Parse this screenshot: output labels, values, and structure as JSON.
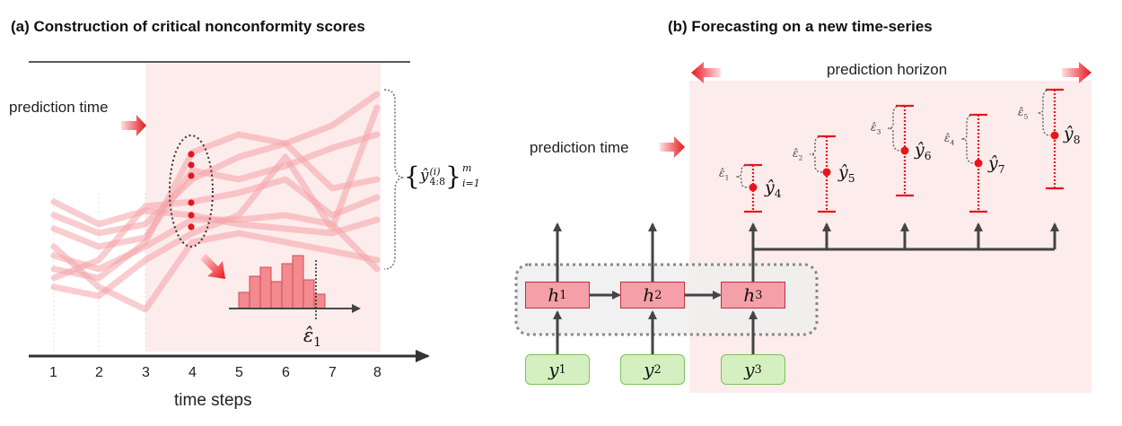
{
  "panel_a": {
    "title": "(a) Construction of critical nonconformity scores",
    "prediction_time_label": "prediction time",
    "x_axis_label": "time steps",
    "ticks": [
      "1",
      "2",
      "3",
      "4",
      "5",
      "6",
      "7",
      "8"
    ],
    "set_label_y": "ŷ",
    "set_label_sup_i": "(i)",
    "set_label_sub_range": "4:8",
    "set_label_sup_m": "m",
    "set_label_sub_index": "i=1",
    "epsilon_label": "ε̂",
    "epsilon_sub": "1",
    "colors": {
      "shade": "#fdecec",
      "trace": "#f4a3a8",
      "dot": "#e8141c",
      "hist": "#f28a8f"
    }
  },
  "panel_b": {
    "title": "(b) Forecasting on a new time-series",
    "prediction_horizon_label": "prediction horizon",
    "prediction_time_label": "prediction time",
    "hidden_nodes": [
      {
        "base": "h",
        "sub": "1"
      },
      {
        "base": "h",
        "sub": "2"
      },
      {
        "base": "h",
        "sub": "3"
      }
    ],
    "input_nodes": [
      {
        "base": "y",
        "sub": "1"
      },
      {
        "base": "y",
        "sub": "2"
      },
      {
        "base": "y",
        "sub": "3"
      }
    ],
    "forecasts": [
      {
        "eps_base": "ε̂",
        "eps_sub": "1",
        "y_base": "ŷ",
        "y_sub": "4"
      },
      {
        "eps_base": "ε̂",
        "eps_sub": "2",
        "y_base": "ŷ",
        "y_sub": "5"
      },
      {
        "eps_base": "ε̂",
        "eps_sub": "3",
        "y_base": "ŷ",
        "y_sub": "6"
      },
      {
        "eps_base": "ε̂",
        "eps_sub": "4",
        "y_base": "ŷ",
        "y_sub": "7"
      },
      {
        "eps_base": "ε̂",
        "eps_sub": "5",
        "y_base": "ŷ",
        "y_sub": "8"
      }
    ],
    "colors": {
      "shade": "#fdecec",
      "interval": "#e8141c",
      "hidden_fill": "#f5a0a8",
      "input_fill": "#d4f0c0",
      "arrow": "#444444"
    }
  }
}
